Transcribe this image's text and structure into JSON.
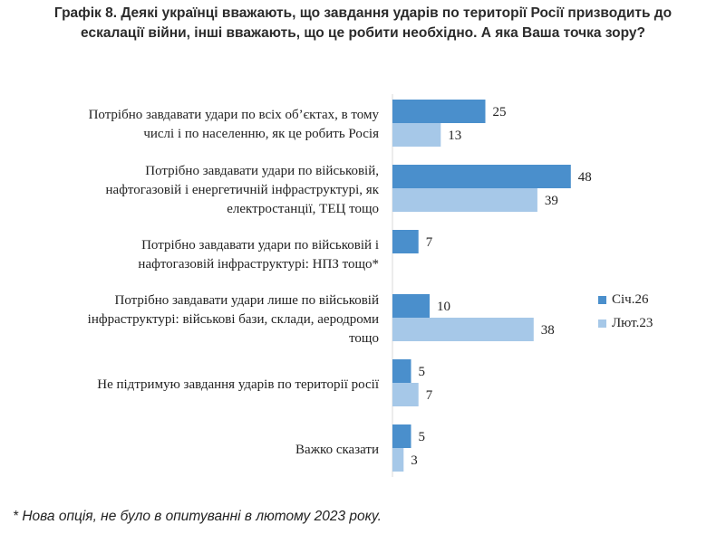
{
  "title_lines": [
    "Графік 8. Деякі українці вважають, що завдання ударів по території Росії призводить до",
    "ескалації війни, інші вважають, що це робити необхідно. А яка Ваша точка зору?"
  ],
  "footnote": "* Нова опція, не було в опитуванні в лютому 2023 року.",
  "colors": {
    "series1": "#4a8fcc",
    "series2": "#a6c8e8",
    "text": "#222222"
  },
  "chart_data": {
    "type": "bar",
    "orientation": "horizontal",
    "categories": [
      [
        "Потрібно завдавати удари по всіх об’єктах, в тому",
        "числі і по населенню, як це робить Росія"
      ],
      [
        "Потрібно завдавати удари по військовій,",
        "нафтогазовій і енергетичній інфраструктурі, як",
        "електростанції, ТЕЦ тощо"
      ],
      [
        "Потрібно завдавати удари по військовій і",
        "нафтогазовій інфраструктурі: НПЗ тощо*"
      ],
      [
        "Потрібно завдавати удари лише по військовій",
        "інфраструктурі: військові бази, склади, аеродроми",
        "тощо"
      ],
      [
        "Не підтримую завдання ударів по території росії"
      ],
      [
        "Важко сказати"
      ]
    ],
    "series": [
      {
        "name": "Січ.26",
        "values": [
          25,
          48,
          7,
          10,
          5,
          5
        ]
      },
      {
        "name": "Лют.23",
        "values": [
          13,
          39,
          null,
          38,
          7,
          3
        ]
      }
    ],
    "xlim": [
      0,
      50
    ],
    "legend_position": "right",
    "grid": false
  }
}
